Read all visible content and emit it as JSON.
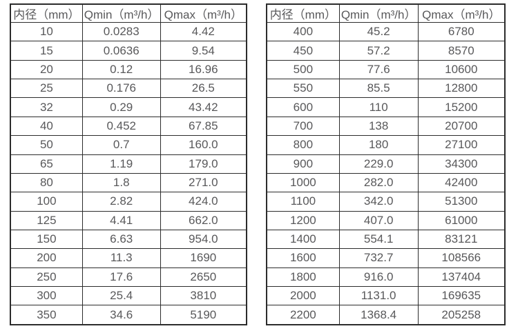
{
  "page": {
    "background_color": "#ffffff",
    "text_color": "#58585a",
    "border_color": "#2b2b2b"
  },
  "tables": [
    {
      "name": "flow-table-small-diameters",
      "headers": [
        "内径（mm）",
        "Qmin（m³/h）",
        "Qmax（m³/h）"
      ],
      "rows": [
        [
          "10",
          "0.0283",
          "4.42"
        ],
        [
          "15",
          "0.0636",
          "9.54"
        ],
        [
          "20",
          "0.12",
          "16.96"
        ],
        [
          "25",
          "0.176",
          "26.5"
        ],
        [
          "32",
          "0.29",
          "43.42"
        ],
        [
          "40",
          "0.452",
          "67.85"
        ],
        [
          "50",
          "0.7",
          "160.0"
        ],
        [
          "65",
          "1.19",
          "179.0"
        ],
        [
          "80",
          "1.8",
          "271.0"
        ],
        [
          "100",
          "2.82",
          "424.0"
        ],
        [
          "125",
          "4.41",
          "662.0"
        ],
        [
          "150",
          "6.63",
          "954.0"
        ],
        [
          "200",
          "11.3",
          "1690"
        ],
        [
          "250",
          "17.6",
          "2650"
        ],
        [
          "300",
          "25.4",
          "3810"
        ],
        [
          "350",
          "34.6",
          "5190"
        ]
      ]
    },
    {
      "name": "flow-table-large-diameters",
      "headers": [
        "内径（mm）",
        "Qmin（m³/h）",
        "Qmax（m³/h）"
      ],
      "rows": [
        [
          "400",
          "45.2",
          "6780"
        ],
        [
          "450",
          "57.2",
          "8570"
        ],
        [
          "500",
          "77.6",
          "10600"
        ],
        [
          "550",
          "85.5",
          "12800"
        ],
        [
          "600",
          "110",
          "15200"
        ],
        [
          "700",
          "138",
          "20700"
        ],
        [
          "800",
          "180",
          "27100"
        ],
        [
          "900",
          "229.0",
          "34300"
        ],
        [
          "1000",
          "282.0",
          "42400"
        ],
        [
          "1100",
          "342.0",
          "51300"
        ],
        [
          "1200",
          "407.0",
          "61000"
        ],
        [
          "1400",
          "554.1",
          "83121"
        ],
        [
          "1600",
          "732.7",
          "108566"
        ],
        [
          "1800",
          "916.0",
          "137404"
        ],
        [
          "2000",
          "1131.0",
          "169635"
        ],
        [
          "2200",
          "1368.4",
          "205258"
        ]
      ]
    }
  ]
}
